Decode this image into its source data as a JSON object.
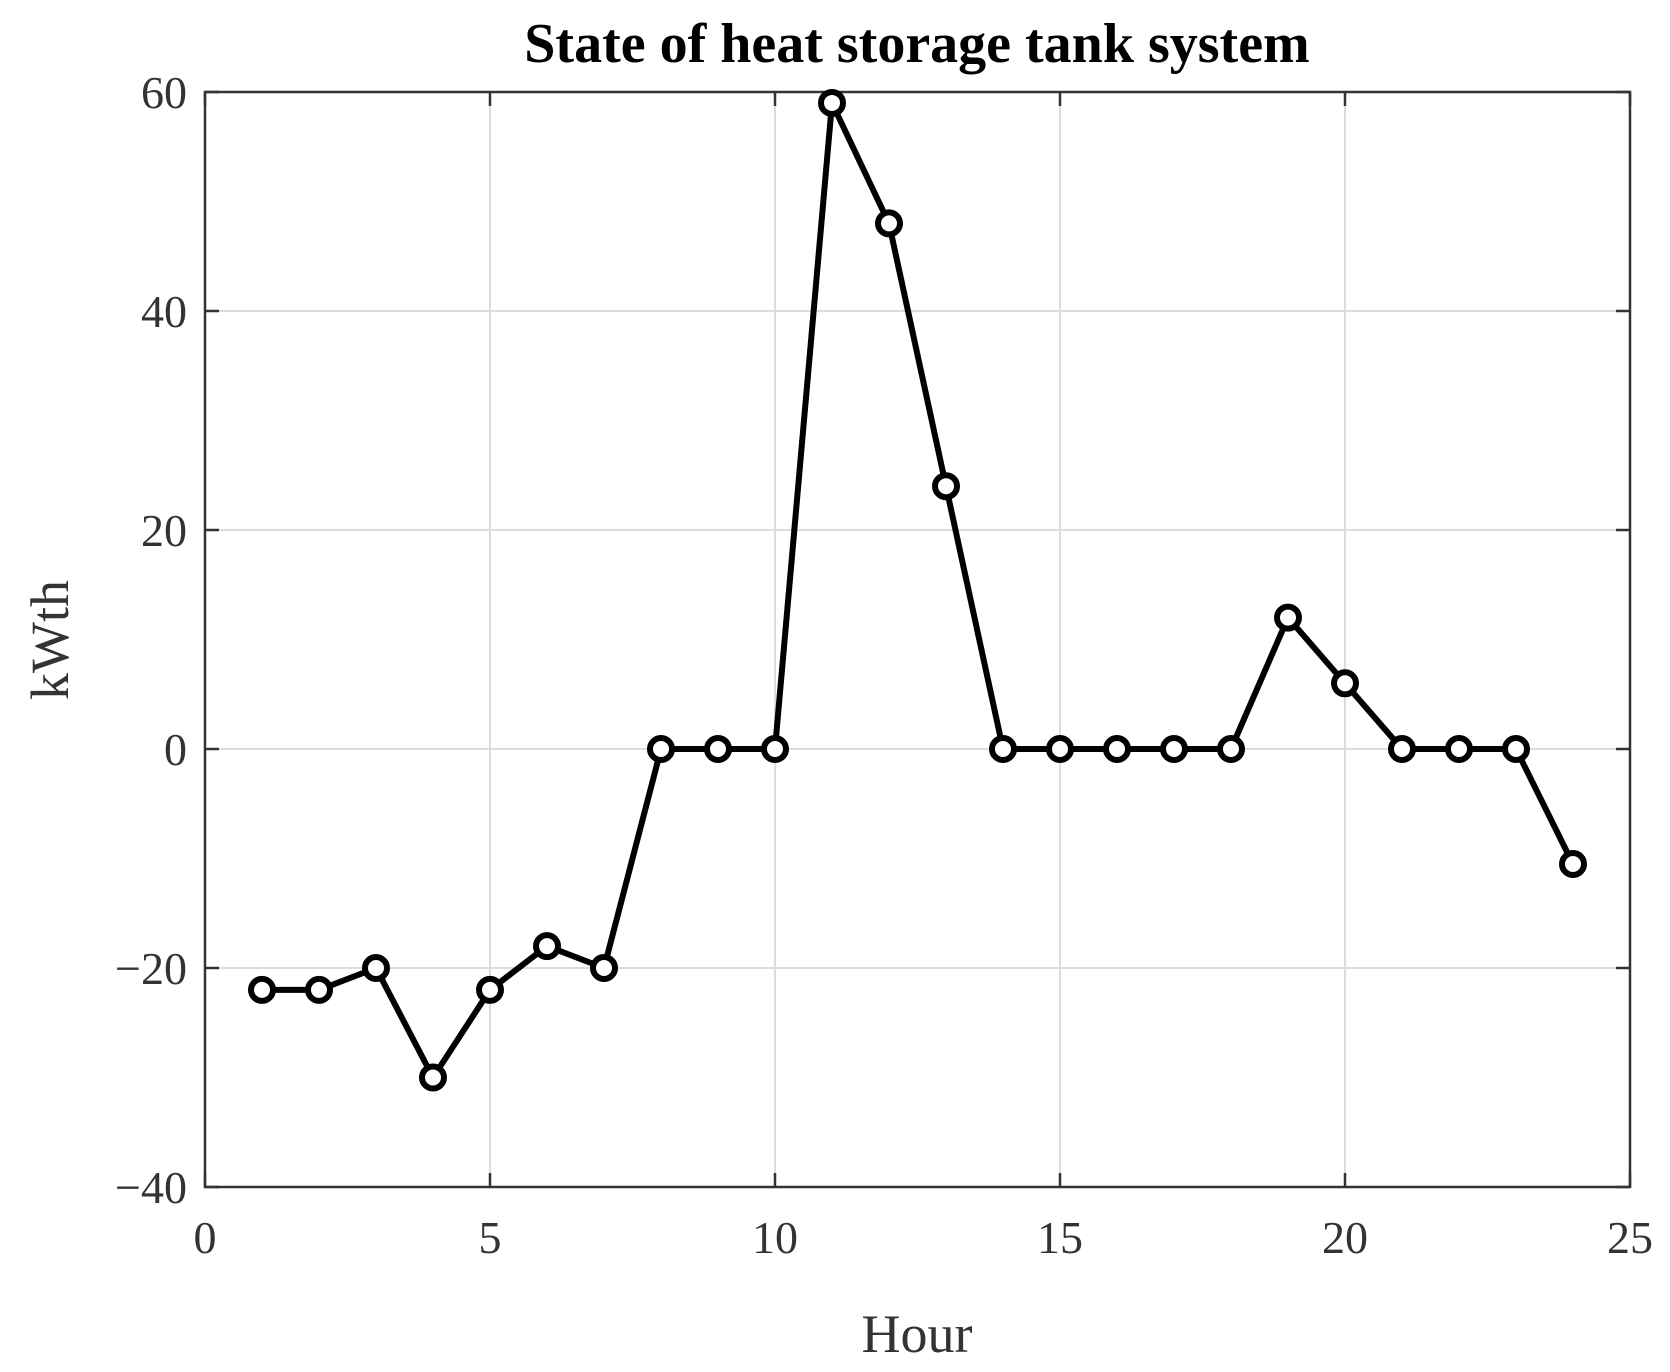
{
  "chart_data": {
    "type": "line",
    "title": "State of heat storage tank system",
    "xlabel": "Hour",
    "ylabel": "kWth",
    "xlim": [
      0,
      25
    ],
    "ylim": [
      -40,
      60
    ],
    "xticks": [
      0,
      5,
      10,
      15,
      20,
      25
    ],
    "yticks": [
      -40,
      -20,
      0,
      20,
      40,
      60
    ],
    "xtick_labels": [
      "0",
      "5",
      "10",
      "15",
      "20",
      "25"
    ],
    "ytick_labels": [
      "−40",
      "−20",
      "0",
      "20",
      "40",
      "60"
    ],
    "grid": true,
    "line_color": "#000000",
    "marker": "circle",
    "series": [
      {
        "x": [
          1,
          2,
          3,
          4,
          5,
          6,
          7,
          8,
          9,
          10,
          11,
          12,
          13,
          14,
          15,
          16,
          17,
          18,
          19,
          20,
          21,
          22,
          23,
          24
        ],
        "values": [
          -22,
          -22,
          -20,
          -30,
          -22,
          -18,
          -20,
          0,
          0,
          0,
          59,
          48,
          24,
          0,
          0,
          0,
          0,
          0,
          12,
          6,
          0,
          0,
          0,
          -10.5
        ]
      }
    ]
  }
}
